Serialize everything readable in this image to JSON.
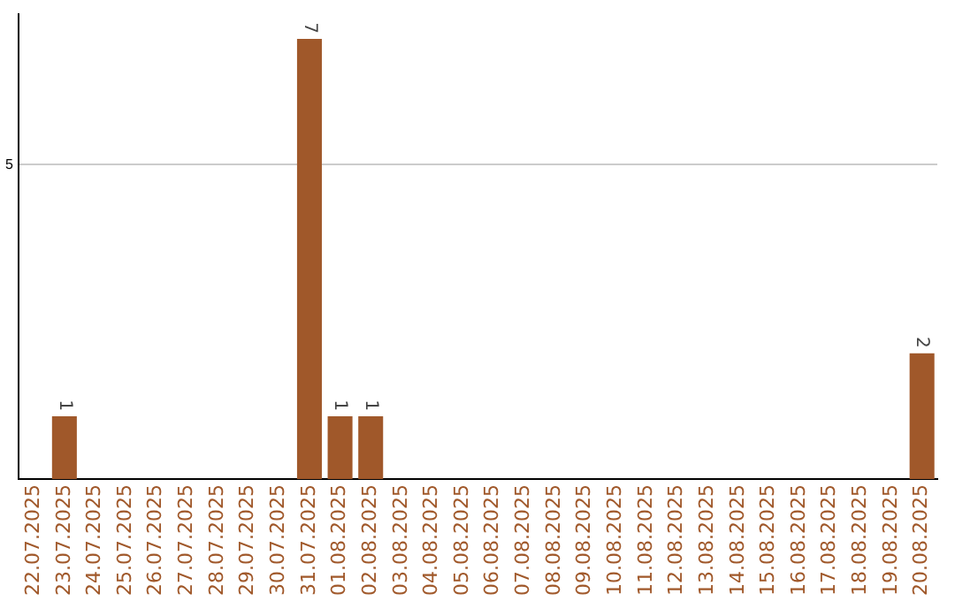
{
  "chart_data": {
    "type": "bar",
    "categories": [
      "22.07.2025",
      "23.07.2025",
      "24.07.2025",
      "25.07.2025",
      "26.07.2025",
      "27.07.2025",
      "28.07.2025",
      "29.07.2025",
      "30.07.2025",
      "31.07.2025",
      "01.08.2025",
      "02.08.2025",
      "03.08.2025",
      "04.08.2025",
      "05.08.2025",
      "06.08.2025",
      "07.08.2025",
      "08.08.2025",
      "09.08.2025",
      "10.08.2025",
      "11.08.2025",
      "12.08.2025",
      "13.08.2025",
      "14.08.2025",
      "15.08.2025",
      "16.08.2025",
      "17.08.2025",
      "18.08.2025",
      "19.08.2025",
      "20.08.2025"
    ],
    "values": [
      0,
      1,
      0,
      0,
      0,
      0,
      0,
      0,
      0,
      7,
      1,
      1,
      0,
      0,
      0,
      0,
      0,
      0,
      0,
      0,
      0,
      0,
      0,
      0,
      0,
      0,
      0,
      0,
      0,
      2
    ],
    "value_labels": [
      null,
      "1",
      null,
      null,
      null,
      null,
      null,
      null,
      null,
      "7",
      "1",
      "1",
      null,
      null,
      null,
      null,
      null,
      null,
      null,
      null,
      null,
      null,
      null,
      null,
      null,
      null,
      null,
      null,
      null,
      "2"
    ],
    "color": "#a0582a",
    "ylim": [
      0,
      7.4
    ],
    "yticks": [
      5
    ],
    "grid": "y",
    "legend": false
  }
}
